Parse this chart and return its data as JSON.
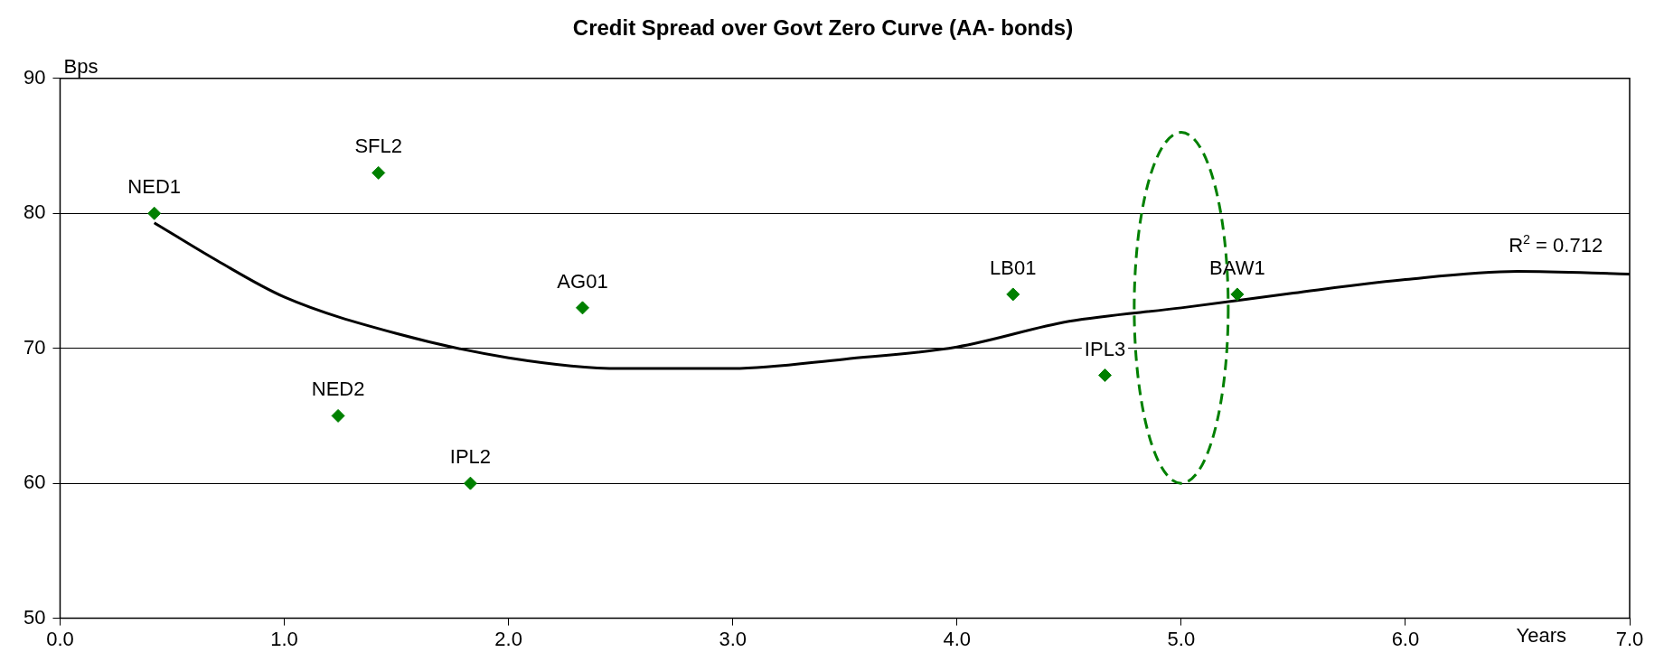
{
  "chart_data": {
    "type": "scatter",
    "title": "Credit Spread over Govt Zero Curve (AA- bonds)",
    "xlabel": "Years",
    "ylabel": "Bps",
    "xlim": [
      0,
      7
    ],
    "xticks": [
      {
        "value": 0,
        "label": "0.0"
      },
      {
        "value": 1,
        "label": "1.0"
      },
      {
        "value": 2,
        "label": "2.0"
      },
      {
        "value": 3,
        "label": "3.0"
      },
      {
        "value": 4,
        "label": "4.0"
      },
      {
        "value": 5,
        "label": "5.0"
      },
      {
        "value": 6,
        "label": "6.0"
      },
      {
        "value": 7,
        "label": "7.0"
      }
    ],
    "ylim": [
      50,
      90
    ],
    "yticks": [
      50,
      60,
      70,
      80,
      90
    ],
    "grid": "y",
    "legend": false,
    "series": [
      {
        "type": "scatter",
        "color": "#008000",
        "marker": "diamond",
        "x": [
          0.42,
          1.42,
          2.33,
          1.24,
          1.83,
          4.25,
          4.66,
          5.25
        ],
        "values": [
          80,
          83,
          73,
          65,
          60,
          74,
          68,
          74
        ]
      },
      {
        "type": "line",
        "color": "#000000",
        "marker": "none",
        "line_style": "solid",
        "x": [
          0.42,
          0.7,
          1.0,
          1.5,
          2.0,
          2.5,
          3.0,
          3.5,
          4.0,
          4.5,
          5.0,
          5.5,
          6.0,
          6.5,
          7.0
        ],
        "values": [
          79.3,
          76.5,
          73.8,
          71.1,
          69.3,
          68.5,
          68.5,
          69.2,
          70.1,
          72.0,
          73.0,
          74.1,
          75.1,
          75.7,
          75.5
        ]
      }
    ],
    "annotations": [
      {
        "text": "NED1",
        "x": 0.42,
        "y": 80
      },
      {
        "text": "SFL2",
        "x": 1.42,
        "y": 83
      },
      {
        "text": "AG01",
        "x": 2.33,
        "y": 73
      },
      {
        "text": "NED2",
        "x": 1.24,
        "y": 65
      },
      {
        "text": "IPL2",
        "x": 1.83,
        "y": 60
      },
      {
        "text": "LB01",
        "x": 4.25,
        "y": 74
      },
      {
        "text": "IPL3",
        "x": 4.66,
        "y": 68
      },
      {
        "text": "BAW1",
        "x": 5.25,
        "y": 74
      },
      {
        "text": "R$^{2}$ = 0.712",
        "x": 6.67,
        "y": 75.7
      }
    ]
  }
}
